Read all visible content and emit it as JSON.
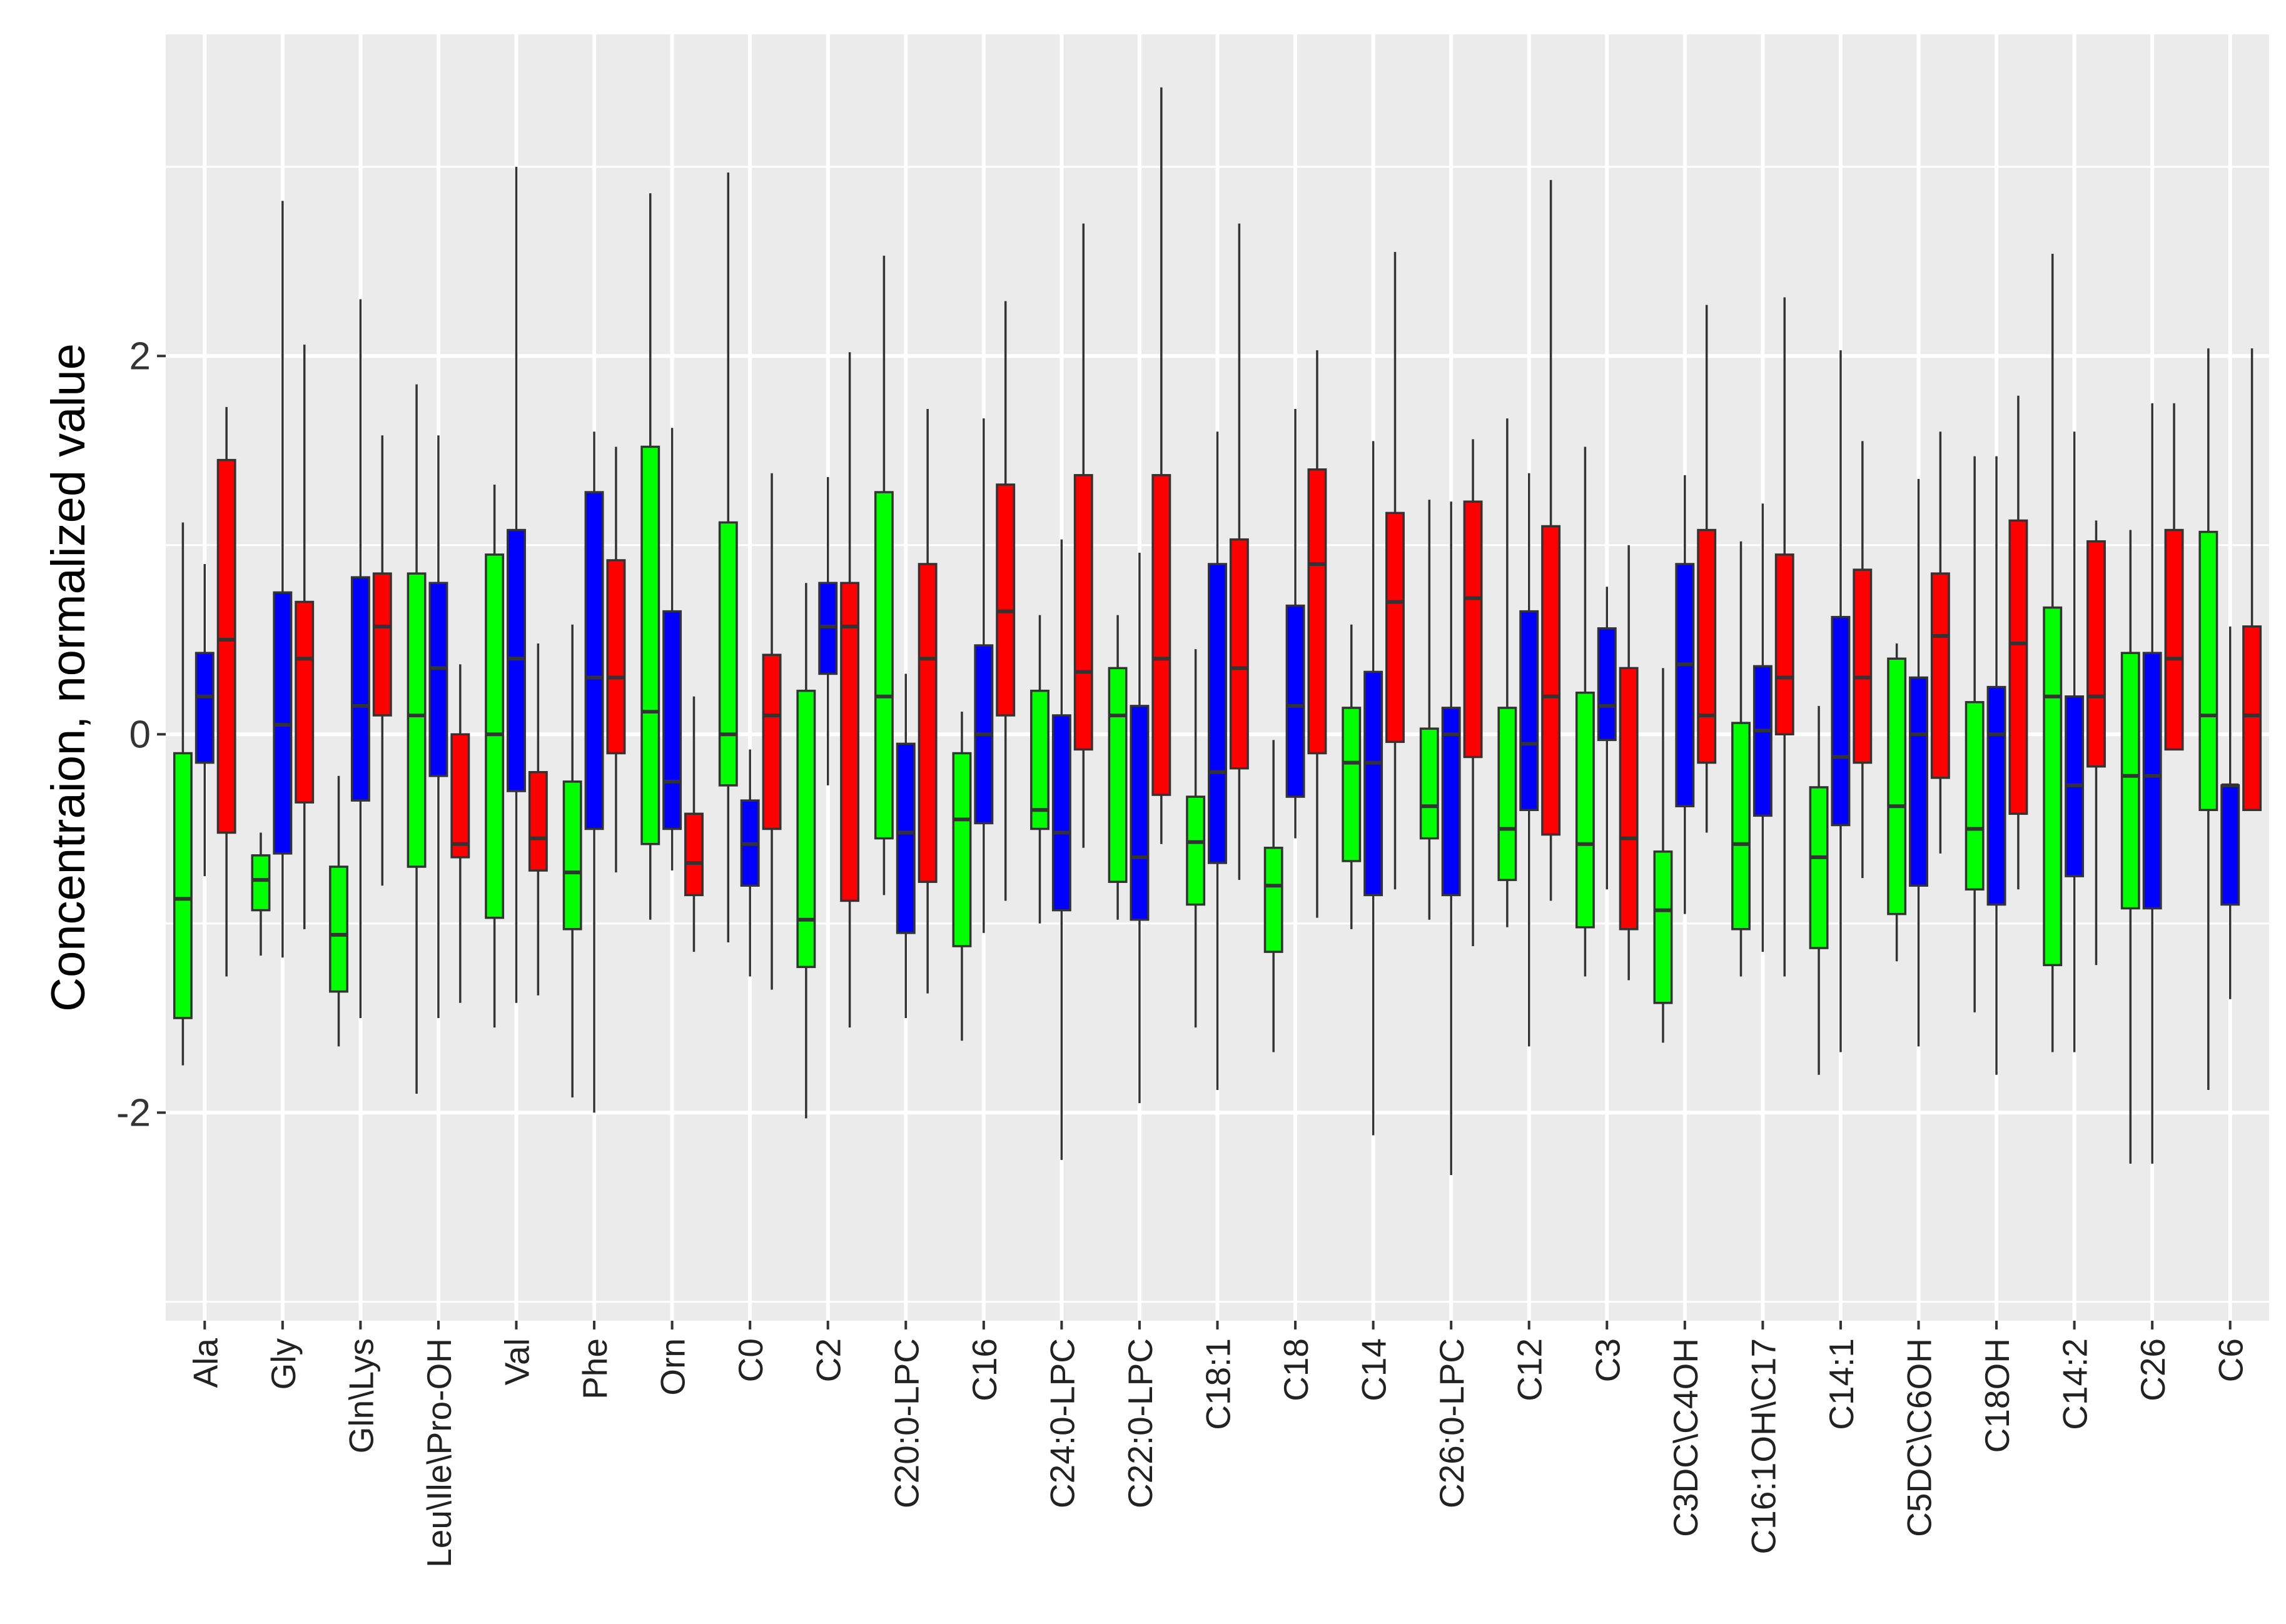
{
  "chart_data": {
    "type": "boxplot",
    "title": "",
    "xlabel": "",
    "ylabel": "Concentraion, normalized value",
    "ylim": [
      -3.1,
      3.7
    ],
    "yticks": [
      -2,
      0,
      2
    ],
    "grid": true,
    "series_colors": [
      "#00ff00",
      "#0000ff",
      "#ff0000"
    ],
    "categories": [
      "Ala",
      "Gly",
      "Gln\\Lys",
      "Leu\\Ile\\Pro-OH",
      "Val",
      "Phe",
      "Orn",
      "C0",
      "C2",
      "C20:0-LPC",
      "C16",
      "C24:0-LPC",
      "C22:0-LPC",
      "C18:1",
      "C18",
      "C14",
      "C26:0-LPC",
      "C12",
      "C3",
      "C3DC\\C4OH",
      "C16:1OH\\C17",
      "C14:1",
      "C5DC\\C6OH",
      "C18OH",
      "C14:2",
      "C26",
      "C6"
    ],
    "boxes": [
      [
        [
          -1.75,
          -1.5,
          -0.87,
          -0.1,
          1.12
        ],
        [
          -0.75,
          -0.15,
          0.2,
          0.43,
          0.9
        ],
        [
          -1.28,
          -0.52,
          0.5,
          1.45,
          1.73
        ]
      ],
      [
        [
          -1.17,
          -0.93,
          -0.77,
          -0.64,
          -0.52
        ],
        [
          -1.18,
          -0.63,
          0.05,
          0.75,
          2.82
        ],
        [
          -1.03,
          -0.36,
          0.4,
          0.7,
          2.06
        ]
      ],
      [
        [
          -1.65,
          -1.36,
          -1.06,
          -0.7,
          -0.22
        ],
        [
          -1.5,
          -0.35,
          0.15,
          0.83,
          2.3
        ],
        [
          -0.8,
          0.1,
          0.57,
          0.85,
          1.58
        ]
      ],
      [
        [
          -1.9,
          -0.7,
          0.1,
          0.85,
          1.85
        ],
        [
          -1.5,
          -0.22,
          0.35,
          0.8,
          1.58
        ],
        [
          -1.42,
          -0.65,
          -0.58,
          0.0,
          0.37
        ]
      ],
      [
        [
          -1.55,
          -0.97,
          0.0,
          0.95,
          1.32
        ],
        [
          -1.42,
          -0.3,
          0.4,
          1.08,
          3.0
        ],
        [
          -1.38,
          -0.72,
          -0.55,
          -0.2,
          0.48
        ]
      ],
      [
        [
          -1.92,
          -1.03,
          -0.73,
          -0.25,
          0.58
        ],
        [
          -2.0,
          -0.5,
          0.3,
          1.28,
          1.6
        ],
        [
          -0.73,
          -0.1,
          0.3,
          0.92,
          1.52
        ]
      ],
      [
        [
          -0.98,
          -0.58,
          0.12,
          1.52,
          2.86
        ],
        [
          -0.72,
          -0.5,
          -0.25,
          0.65,
          1.62
        ],
        [
          -1.15,
          -0.85,
          -0.68,
          -0.42,
          0.2
        ]
      ],
      [
        [
          -1.1,
          -0.27,
          0.0,
          1.12,
          2.97
        ],
        [
          -1.28,
          -0.8,
          -0.58,
          -0.35,
          -0.08
        ],
        [
          -1.35,
          -0.5,
          0.1,
          0.42,
          1.38
        ]
      ],
      [
        [
          -2.03,
          -1.23,
          -0.98,
          0.23,
          0.8
        ],
        [
          -0.27,
          0.32,
          0.57,
          0.8,
          1.36
        ],
        [
          -1.55,
          -0.88,
          0.57,
          0.8,
          2.02
        ]
      ],
      [
        [
          -0.85,
          -0.55,
          0.2,
          1.28,
          2.53
        ],
        [
          -1.5,
          -1.05,
          -0.52,
          -0.05,
          0.32
        ],
        [
          -1.37,
          -0.78,
          0.4,
          0.9,
          1.72
        ]
      ],
      [
        [
          -1.62,
          -1.12,
          -0.45,
          -0.1,
          0.12
        ],
        [
          -1.05,
          -0.47,
          0.0,
          0.47,
          1.67
        ],
        [
          -0.88,
          0.1,
          0.65,
          1.32,
          2.29
        ]
      ],
      [
        [
          -1.0,
          -0.5,
          -0.4,
          0.23,
          0.63
        ],
        [
          -2.25,
          -0.93,
          -0.52,
          0.1,
          1.03
        ],
        [
          -0.6,
          -0.08,
          0.33,
          1.37,
          2.7
        ]
      ],
      [
        [
          -0.98,
          -0.78,
          0.1,
          0.35,
          0.63
        ],
        [
          -1.95,
          -0.98,
          -0.65,
          0.15,
          0.96
        ],
        [
          -0.58,
          -0.32,
          0.4,
          1.37,
          3.42
        ]
      ],
      [
        [
          -1.55,
          -0.9,
          -0.57,
          -0.33,
          0.45
        ],
        [
          -1.88,
          -0.68,
          -0.2,
          0.9,
          1.6
        ],
        [
          -0.77,
          -0.18,
          0.35,
          1.03,
          2.7
        ]
      ],
      [
        [
          -1.68,
          -1.15,
          -0.8,
          -0.6,
          -0.03
        ],
        [
          -0.55,
          -0.33,
          0.15,
          0.68,
          1.72
        ],
        [
          -0.97,
          -0.1,
          0.9,
          1.4,
          2.03
        ]
      ],
      [
        [
          -1.03,
          -0.67,
          -0.15,
          0.14,
          0.58
        ],
        [
          -2.12,
          -0.85,
          -0.15,
          0.33,
          1.55
        ],
        [
          -0.82,
          -0.04,
          0.7,
          1.17,
          2.55
        ]
      ],
      [
        [
          -0.98,
          -0.55,
          -0.38,
          0.03,
          1.24
        ],
        [
          -2.33,
          -0.85,
          0.0,
          0.14,
          1.23
        ],
        [
          -1.12,
          -0.12,
          0.72,
          1.23,
          1.56
        ]
      ],
      [
        [
          -1.02,
          -0.77,
          -0.5,
          0.14,
          1.67
        ],
        [
          -1.65,
          -0.4,
          -0.05,
          0.65,
          1.38
        ],
        [
          -0.88,
          -0.53,
          0.2,
          1.1,
          2.93
        ]
      ],
      [
        [
          -1.28,
          -1.02,
          -0.58,
          0.22,
          1.52
        ],
        [
          -0.82,
          -0.03,
          0.15,
          0.56,
          0.78
        ],
        [
          -1.3,
          -1.03,
          -0.55,
          0.35,
          1.0
        ]
      ],
      [
        [
          -1.63,
          -1.42,
          -0.93,
          -0.62,
          0.35
        ],
        [
          -0.95,
          -0.38,
          0.37,
          0.9,
          1.37
        ],
        [
          -0.52,
          -0.15,
          0.1,
          1.08,
          2.27
        ]
      ],
      [
        [
          -1.28,
          -1.03,
          -0.58,
          0.06,
          1.02
        ],
        [
          -1.15,
          -0.43,
          0.02,
          0.36,
          1.22
        ],
        [
          -1.28,
          0.0,
          0.3,
          0.95,
          2.31
        ]
      ],
      [
        [
          -1.8,
          -1.13,
          -0.65,
          -0.28,
          0.15
        ],
        [
          -1.68,
          -0.48,
          -0.12,
          0.62,
          2.03
        ],
        [
          -0.76,
          -0.15,
          0.3,
          0.87,
          1.55
        ]
      ],
      [
        [
          -1.2,
          -0.95,
          -0.38,
          0.4,
          0.48
        ],
        [
          -1.65,
          -0.8,
          0.0,
          0.3,
          1.35
        ],
        [
          -0.63,
          -0.23,
          0.52,
          0.85,
          1.6
        ]
      ],
      [
        [
          -1.47,
          -0.82,
          -0.5,
          0.17,
          1.47
        ],
        [
          -1.8,
          -0.9,
          0.0,
          0.25,
          1.47
        ],
        [
          -0.82,
          -0.42,
          0.48,
          1.13,
          1.79
        ]
      ],
      [
        [
          -1.68,
          -1.22,
          0.2,
          0.67,
          2.54
        ],
        [
          -1.68,
          -0.75,
          -0.27,
          0.2,
          1.6
        ],
        [
          -1.22,
          -0.17,
          0.2,
          1.02,
          1.13
        ]
      ],
      [
        [
          -2.27,
          -0.92,
          -0.22,
          0.43,
          1.08
        ],
        [
          -2.27,
          -0.92,
          -0.22,
          0.43,
          1.75
        ],
        [
          -0.08,
          -0.08,
          0.4,
          1.08,
          1.75
        ]
      ],
      [
        [
          -1.88,
          -0.4,
          0.1,
          1.07,
          2.04
        ],
        [
          -1.4,
          -0.9,
          -0.27,
          -0.27,
          0.57
        ],
        [
          -0.4,
          -0.4,
          0.1,
          0.57,
          2.04
        ]
      ]
    ]
  }
}
